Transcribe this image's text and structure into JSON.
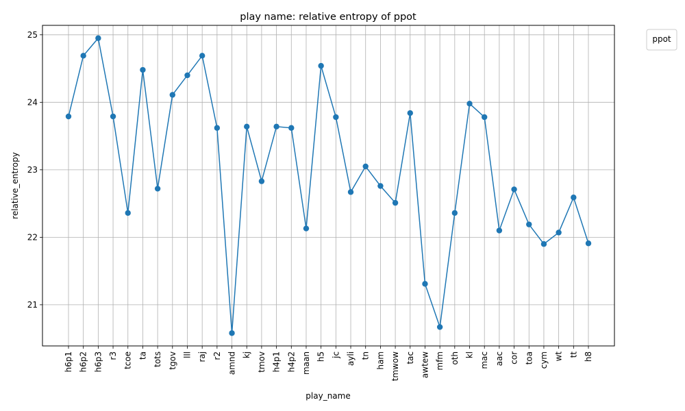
{
  "chart_data": {
    "type": "line",
    "title": "play name: relative entropy of ppot",
    "xlabel": "play_name",
    "ylabel": "relative_entropy",
    "categories": [
      "h6p1",
      "h6p2",
      "h6p3",
      "r3",
      "tcoe",
      "ta",
      "tots",
      "tgov",
      "lll",
      "raj",
      "r2",
      "amnd",
      "kj",
      "tmov",
      "h4p1",
      "h4p2",
      "maan",
      "h5",
      "jc",
      "ayli",
      "tn",
      "ham",
      "tmwow",
      "tac",
      "awtew",
      "mfm",
      "oth",
      "kl",
      "mac",
      "aac",
      "cor",
      "toa",
      "cym",
      "wt",
      "tt",
      "h8"
    ],
    "series": [
      {
        "values": [
          23.79,
          24.69,
          24.95,
          23.79,
          22.36,
          24.48,
          22.72,
          24.11,
          24.4,
          24.69,
          23.62,
          20.58,
          23.64,
          22.83,
          23.64,
          23.62,
          22.13,
          24.54,
          23.78,
          22.67,
          23.05,
          22.76,
          22.51,
          23.84,
          21.31,
          20.67,
          22.36,
          23.98,
          23.78,
          22.1,
          22.71,
          22.19,
          21.9,
          22.07,
          22.59,
          21.91
        ],
        "color": "#1f77b4"
      }
    ],
    "ylim": [
      20.39,
      25.14
    ],
    "yticks": [
      21,
      22,
      23,
      24,
      25
    ],
    "grid": true,
    "legend": {
      "title": "ppot",
      "position": "outside-top-right"
    }
  }
}
